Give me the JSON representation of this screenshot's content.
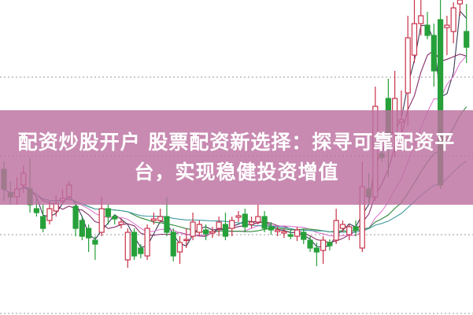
{
  "banner": {
    "title": "配资炒股开户 股票配资新选择：探寻可靠配资平台，实现稳健投资增值",
    "background": "#bc70a0"
  },
  "chart_data": {
    "type": "candlestick",
    "grid": "dotted horizontal",
    "colors": {
      "up": "#c8324a",
      "down": "#27a03a",
      "ma": [
        "#3a3a5a",
        "#8a2c6a",
        "#e07ad0",
        "#2f8a3a",
        "#3f9aa0"
      ]
    },
    "candles": [
      [
        185,
        160,
        195,
        145
      ],
      [
        155,
        150,
        170,
        140
      ],
      [
        150,
        160,
        175,
        140
      ],
      [
        165,
        180,
        190,
        155
      ],
      [
        160,
        140,
        200,
        130
      ],
      [
        135,
        130,
        150,
        125
      ],
      [
        125,
        110,
        140,
        105
      ],
      [
        120,
        135,
        145,
        115
      ],
      [
        132,
        142,
        152,
        125
      ],
      [
        145,
        148,
        160,
        140
      ],
      [
        150,
        165,
        170,
        145
      ],
      [
        138,
        110,
        145,
        100
      ],
      [
        120,
        100,
        125,
        95
      ],
      [
        110,
        98,
        115,
        80
      ],
      [
        95,
        90,
        100,
        70
      ],
      [
        105,
        135,
        150,
        100
      ],
      [
        135,
        125,
        140,
        115
      ],
      [
        125,
        122,
        128,
        115
      ],
      [
        115,
        118,
        123,
        110
      ],
      [
        70,
        105,
        110,
        60
      ],
      [
        105,
        75,
        110,
        70
      ],
      [
        85,
        78,
        90,
        72
      ],
      [
        75,
        110,
        115,
        70
      ],
      [
        120,
        122,
        130,
        115
      ],
      [
        120,
        125,
        135,
        118
      ],
      [
        125,
        105,
        150,
        100
      ],
      [
        105,
        75,
        110,
        68
      ],
      [
        80,
        92,
        100,
        65
      ],
      [
        95,
        96,
        110,
        85
      ],
      [
        100,
        118,
        130,
        95
      ],
      [
        105,
        115,
        120,
        100
      ],
      [
        108,
        103,
        115,
        95
      ],
      [
        104,
        106,
        112,
        98
      ],
      [
        110,
        118,
        125,
        100
      ],
      [
        115,
        100,
        130,
        95
      ],
      [
        110,
        120,
        125,
        100
      ],
      [
        124,
        126,
        132,
        118
      ],
      [
        128,
        112,
        135,
        105
      ],
      [
        115,
        118,
        125,
        110
      ],
      [
        118,
        125,
        140,
        115
      ],
      [
        125,
        110,
        132,
        105
      ],
      [
        112,
        108,
        118,
        102
      ],
      [
        106,
        108,
        112,
        100
      ],
      [
        104,
        106,
        110,
        98
      ],
      [
        102,
        100,
        108,
        96
      ],
      [
        100,
        108,
        112,
        94
      ],
      [
        105,
        96,
        110,
        90
      ],
      [
        95,
        85,
        100,
        80
      ],
      [
        85,
        80,
        92,
        62
      ],
      [
        82,
        95,
        100,
        65
      ],
      [
        92,
        88,
        96,
        82
      ],
      [
        95,
        120,
        135,
        90
      ],
      [
        110,
        115,
        120,
        105
      ],
      [
        102,
        112,
        115,
        95
      ],
      [
        112,
        108,
        120,
        100
      ],
      [
        85,
        163,
        195,
        80
      ],
      [
        160,
        150,
        180,
        140
      ],
      [
        150,
        265,
        290,
        145
      ],
      [
        205,
        200,
        230,
        195
      ],
      [
        275,
        225,
        300,
        175
      ],
      [
        230,
        275,
        310,
        200
      ],
      [
        245,
        248,
        285,
        220
      ],
      [
        282,
        352,
        380,
        240
      ],
      [
        330,
        370,
        400,
        320
      ],
      [
        370,
        380,
        400,
        355
      ],
      [
        368,
        355,
        385,
        350
      ],
      [
        355,
        310,
        370,
        290
      ],
      [
        375,
        165,
        400,
        160
      ],
      [
        365,
        368,
        380,
        330
      ],
      [
        360,
        390,
        397,
        345
      ],
      [
        395,
        400,
        400,
        380
      ],
      [
        360,
        340,
        395,
        320
      ]
    ]
  }
}
